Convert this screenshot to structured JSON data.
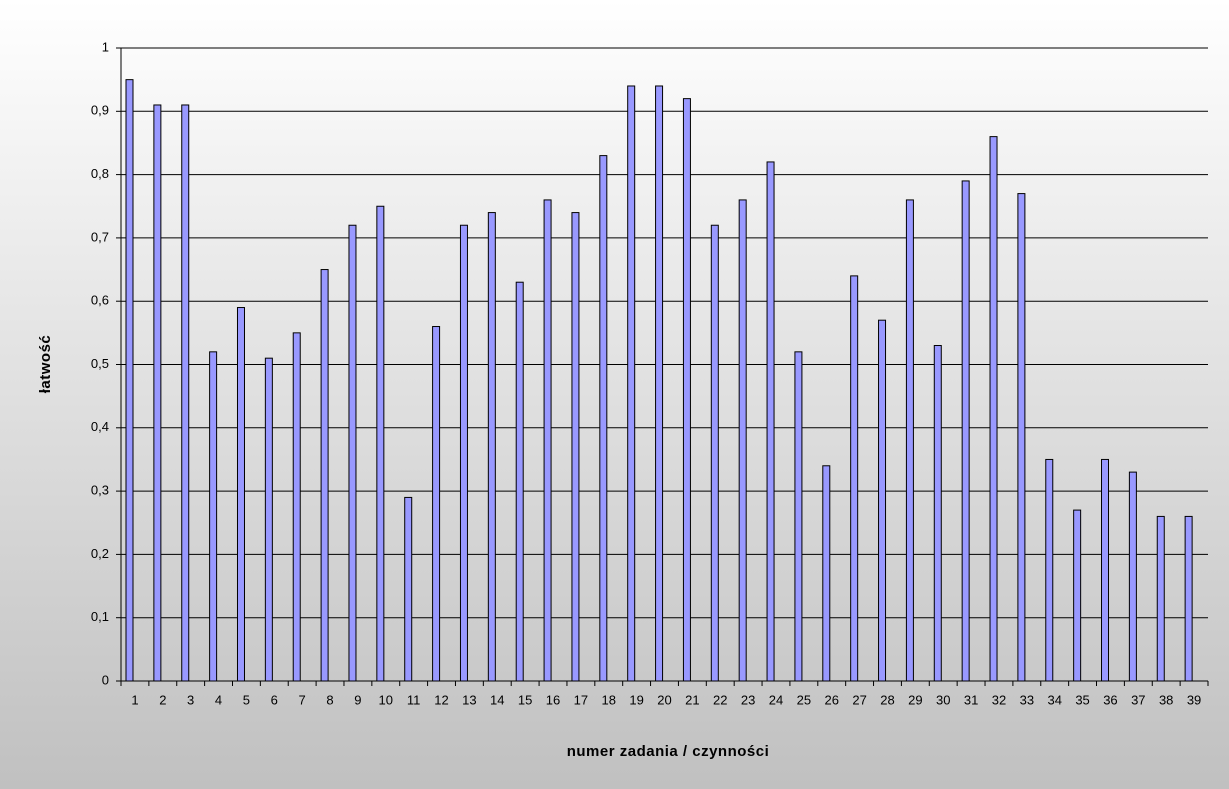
{
  "chart_data": {
    "type": "bar",
    "x_label": "numer zadania / czynności",
    "y_label": "łatwość",
    "categories": [
      "1",
      "2",
      "3",
      "4",
      "5",
      "6",
      "7",
      "8",
      "9",
      "10",
      "11",
      "12",
      "13",
      "14",
      "15",
      "16",
      "17",
      "18",
      "19",
      "20",
      "21",
      "22",
      "23",
      "24",
      "25",
      "26",
      "27",
      "28",
      "29",
      "30",
      "31",
      "32",
      "33",
      "34",
      "35",
      "36",
      "37",
      "38",
      "39"
    ],
    "values": [
      0.95,
      0.91,
      0.91,
      0.52,
      0.59,
      0.51,
      0.55,
      0.65,
      0.72,
      0.75,
      0.29,
      0.56,
      0.72,
      0.74,
      0.63,
      0.76,
      0.74,
      0.83,
      0.94,
      0.94,
      0.92,
      0.72,
      0.76,
      0.82,
      0.52,
      0.34,
      0.64,
      0.57,
      0.76,
      0.53,
      0.79,
      0.86,
      0.77,
      0.35,
      0.27,
      0.35,
      0.33,
      0.26,
      0.26
    ],
    "color": "#9999ff",
    "ylim": [
      0,
      1
    ],
    "yticks": [
      0,
      {
        "value": 0.1,
        "label": "0,1"
      },
      {
        "value": 0.2,
        "label": "0,2"
      },
      {
        "value": 0.3,
        "label": "0,3"
      },
      {
        "value": 0.4,
        "label": "0,4"
      },
      {
        "value": 0.5,
        "label": "0,5"
      },
      {
        "value": 0.6,
        "label": "0,6"
      },
      {
        "value": 0.7,
        "label": "0,7"
      },
      {
        "value": 0.8,
        "label": "0,8"
      },
      {
        "value": 0.9,
        "label": "0,9"
      },
      1
    ],
    "grid": true
  }
}
